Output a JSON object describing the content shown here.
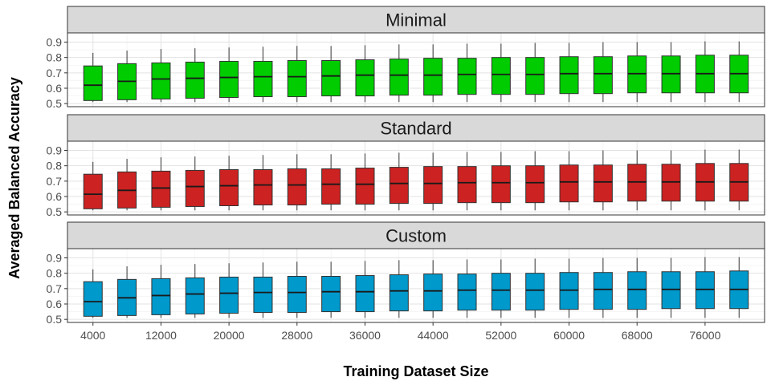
{
  "chart_data": {
    "type": "boxplot",
    "xlabel": "Training Dataset Size",
    "ylabel": "Averaged Balanced Accuracy",
    "ylim": [
      0.48,
      0.96
    ],
    "y_ticks": [
      0.5,
      0.6,
      0.7,
      0.8,
      0.9
    ],
    "x": [
      4000,
      8000,
      12000,
      16000,
      20000,
      24000,
      28000,
      32000,
      36000,
      40000,
      44000,
      48000,
      52000,
      56000,
      60000,
      64000,
      68000,
      72000,
      76000,
      80000
    ],
    "x_tick_labels": [
      "4000",
      "12000",
      "20000",
      "28000",
      "36000",
      "44000",
      "52000",
      "60000",
      "68000",
      "76000"
    ],
    "x_tick_values": [
      4000,
      12000,
      20000,
      28000,
      36000,
      44000,
      52000,
      60000,
      68000,
      76000
    ],
    "panels": [
      {
        "title": "Minimal",
        "color": "#00cc00",
        "boxes": [
          {
            "x": 4000,
            "min": 0.51,
            "q1": 0.52,
            "median": 0.62,
            "q3": 0.745,
            "max": 0.83
          },
          {
            "x": 8000,
            "min": 0.51,
            "q1": 0.525,
            "median": 0.645,
            "q3": 0.76,
            "max": 0.845
          },
          {
            "x": 12000,
            "min": 0.51,
            "q1": 0.53,
            "median": 0.66,
            "q3": 0.765,
            "max": 0.855
          },
          {
            "x": 16000,
            "min": 0.51,
            "q1": 0.535,
            "median": 0.665,
            "q3": 0.77,
            "max": 0.86
          },
          {
            "x": 20000,
            "min": 0.51,
            "q1": 0.54,
            "median": 0.67,
            "q3": 0.775,
            "max": 0.865
          },
          {
            "x": 24000,
            "min": 0.51,
            "q1": 0.545,
            "median": 0.675,
            "q3": 0.775,
            "max": 0.87
          },
          {
            "x": 28000,
            "min": 0.51,
            "q1": 0.545,
            "median": 0.675,
            "q3": 0.78,
            "max": 0.875
          },
          {
            "x": 32000,
            "min": 0.51,
            "q1": 0.55,
            "median": 0.68,
            "q3": 0.78,
            "max": 0.875
          },
          {
            "x": 36000,
            "min": 0.51,
            "q1": 0.55,
            "median": 0.685,
            "q3": 0.785,
            "max": 0.88
          },
          {
            "x": 40000,
            "min": 0.51,
            "q1": 0.555,
            "median": 0.685,
            "q3": 0.79,
            "max": 0.885
          },
          {
            "x": 44000,
            "min": 0.51,
            "q1": 0.555,
            "median": 0.685,
            "q3": 0.795,
            "max": 0.885
          },
          {
            "x": 48000,
            "min": 0.51,
            "q1": 0.56,
            "median": 0.69,
            "q3": 0.795,
            "max": 0.89
          },
          {
            "x": 52000,
            "min": 0.51,
            "q1": 0.56,
            "median": 0.69,
            "q3": 0.8,
            "max": 0.89
          },
          {
            "x": 56000,
            "min": 0.51,
            "q1": 0.56,
            "median": 0.69,
            "q3": 0.8,
            "max": 0.895
          },
          {
            "x": 60000,
            "min": 0.51,
            "q1": 0.565,
            "median": 0.695,
            "q3": 0.805,
            "max": 0.895
          },
          {
            "x": 64000,
            "min": 0.51,
            "q1": 0.565,
            "median": 0.695,
            "q3": 0.805,
            "max": 0.9
          },
          {
            "x": 68000,
            "min": 0.51,
            "q1": 0.57,
            "median": 0.695,
            "q3": 0.81,
            "max": 0.9
          },
          {
            "x": 72000,
            "min": 0.51,
            "q1": 0.57,
            "median": 0.695,
            "q3": 0.81,
            "max": 0.9
          },
          {
            "x": 76000,
            "min": 0.51,
            "q1": 0.57,
            "median": 0.695,
            "q3": 0.815,
            "max": 0.905
          },
          {
            "x": 80000,
            "min": 0.51,
            "q1": 0.57,
            "median": 0.695,
            "q3": 0.815,
            "max": 0.905
          }
        ]
      },
      {
        "title": "Standard",
        "color": "#cc2222",
        "boxes": [
          {
            "x": 4000,
            "min": 0.51,
            "q1": 0.52,
            "median": 0.615,
            "q3": 0.745,
            "max": 0.825
          },
          {
            "x": 8000,
            "min": 0.51,
            "q1": 0.525,
            "median": 0.64,
            "q3": 0.76,
            "max": 0.845
          },
          {
            "x": 12000,
            "min": 0.51,
            "q1": 0.53,
            "median": 0.655,
            "q3": 0.765,
            "max": 0.855
          },
          {
            "x": 16000,
            "min": 0.51,
            "q1": 0.535,
            "median": 0.665,
            "q3": 0.77,
            "max": 0.86
          },
          {
            "x": 20000,
            "min": 0.51,
            "q1": 0.54,
            "median": 0.67,
            "q3": 0.775,
            "max": 0.865
          },
          {
            "x": 24000,
            "min": 0.51,
            "q1": 0.545,
            "median": 0.675,
            "q3": 0.775,
            "max": 0.87
          },
          {
            "x": 28000,
            "min": 0.51,
            "q1": 0.545,
            "median": 0.675,
            "q3": 0.78,
            "max": 0.875
          },
          {
            "x": 32000,
            "min": 0.51,
            "q1": 0.55,
            "median": 0.68,
            "q3": 0.78,
            "max": 0.875
          },
          {
            "x": 36000,
            "min": 0.51,
            "q1": 0.55,
            "median": 0.68,
            "q3": 0.785,
            "max": 0.88
          },
          {
            "x": 40000,
            "min": 0.51,
            "q1": 0.555,
            "median": 0.685,
            "q3": 0.79,
            "max": 0.885
          },
          {
            "x": 44000,
            "min": 0.51,
            "q1": 0.555,
            "median": 0.685,
            "q3": 0.795,
            "max": 0.885
          },
          {
            "x": 48000,
            "min": 0.51,
            "q1": 0.56,
            "median": 0.69,
            "q3": 0.795,
            "max": 0.89
          },
          {
            "x": 52000,
            "min": 0.51,
            "q1": 0.56,
            "median": 0.69,
            "q3": 0.8,
            "max": 0.89
          },
          {
            "x": 56000,
            "min": 0.51,
            "q1": 0.56,
            "median": 0.69,
            "q3": 0.8,
            "max": 0.895
          },
          {
            "x": 60000,
            "min": 0.51,
            "q1": 0.565,
            "median": 0.695,
            "q3": 0.805,
            "max": 0.895
          },
          {
            "x": 64000,
            "min": 0.51,
            "q1": 0.565,
            "median": 0.695,
            "q3": 0.805,
            "max": 0.9
          },
          {
            "x": 68000,
            "min": 0.51,
            "q1": 0.57,
            "median": 0.695,
            "q3": 0.81,
            "max": 0.9
          },
          {
            "x": 72000,
            "min": 0.51,
            "q1": 0.57,
            "median": 0.695,
            "q3": 0.81,
            "max": 0.9
          },
          {
            "x": 76000,
            "min": 0.51,
            "q1": 0.57,
            "median": 0.695,
            "q3": 0.815,
            "max": 0.905
          },
          {
            "x": 80000,
            "min": 0.51,
            "q1": 0.57,
            "median": 0.695,
            "q3": 0.815,
            "max": 0.905
          }
        ]
      },
      {
        "title": "Custom",
        "color": "#0099cc",
        "boxes": [
          {
            "x": 4000,
            "min": 0.51,
            "q1": 0.52,
            "median": 0.615,
            "q3": 0.745,
            "max": 0.825
          },
          {
            "x": 8000,
            "min": 0.51,
            "q1": 0.525,
            "median": 0.64,
            "q3": 0.76,
            "max": 0.845
          },
          {
            "x": 12000,
            "min": 0.51,
            "q1": 0.53,
            "median": 0.655,
            "q3": 0.765,
            "max": 0.855
          },
          {
            "x": 16000,
            "min": 0.51,
            "q1": 0.535,
            "median": 0.665,
            "q3": 0.77,
            "max": 0.86
          },
          {
            "x": 20000,
            "min": 0.51,
            "q1": 0.54,
            "median": 0.67,
            "q3": 0.775,
            "max": 0.865
          },
          {
            "x": 24000,
            "min": 0.51,
            "q1": 0.545,
            "median": 0.675,
            "q3": 0.775,
            "max": 0.87
          },
          {
            "x": 28000,
            "min": 0.51,
            "q1": 0.545,
            "median": 0.675,
            "q3": 0.78,
            "max": 0.875
          },
          {
            "x": 32000,
            "min": 0.51,
            "q1": 0.55,
            "median": 0.68,
            "q3": 0.78,
            "max": 0.875
          },
          {
            "x": 36000,
            "min": 0.51,
            "q1": 0.55,
            "median": 0.68,
            "q3": 0.785,
            "max": 0.88
          },
          {
            "x": 40000,
            "min": 0.51,
            "q1": 0.555,
            "median": 0.685,
            "q3": 0.79,
            "max": 0.885
          },
          {
            "x": 44000,
            "min": 0.51,
            "q1": 0.555,
            "median": 0.685,
            "q3": 0.795,
            "max": 0.885
          },
          {
            "x": 48000,
            "min": 0.51,
            "q1": 0.56,
            "median": 0.69,
            "q3": 0.795,
            "max": 0.89
          },
          {
            "x": 52000,
            "min": 0.51,
            "q1": 0.56,
            "median": 0.69,
            "q3": 0.8,
            "max": 0.89
          },
          {
            "x": 56000,
            "min": 0.51,
            "q1": 0.56,
            "median": 0.69,
            "q3": 0.8,
            "max": 0.895
          },
          {
            "x": 60000,
            "min": 0.51,
            "q1": 0.565,
            "median": 0.69,
            "q3": 0.805,
            "max": 0.895
          },
          {
            "x": 64000,
            "min": 0.51,
            "q1": 0.565,
            "median": 0.695,
            "q3": 0.805,
            "max": 0.9
          },
          {
            "x": 68000,
            "min": 0.51,
            "q1": 0.565,
            "median": 0.695,
            "q3": 0.81,
            "max": 0.9
          },
          {
            "x": 72000,
            "min": 0.51,
            "q1": 0.57,
            "median": 0.695,
            "q3": 0.81,
            "max": 0.9
          },
          {
            "x": 76000,
            "min": 0.51,
            "q1": 0.57,
            "median": 0.695,
            "q3": 0.81,
            "max": 0.905
          },
          {
            "x": 80000,
            "min": 0.51,
            "q1": 0.57,
            "median": 0.695,
            "q3": 0.815,
            "max": 0.905
          }
        ]
      }
    ],
    "grid": true,
    "legend": "none"
  }
}
